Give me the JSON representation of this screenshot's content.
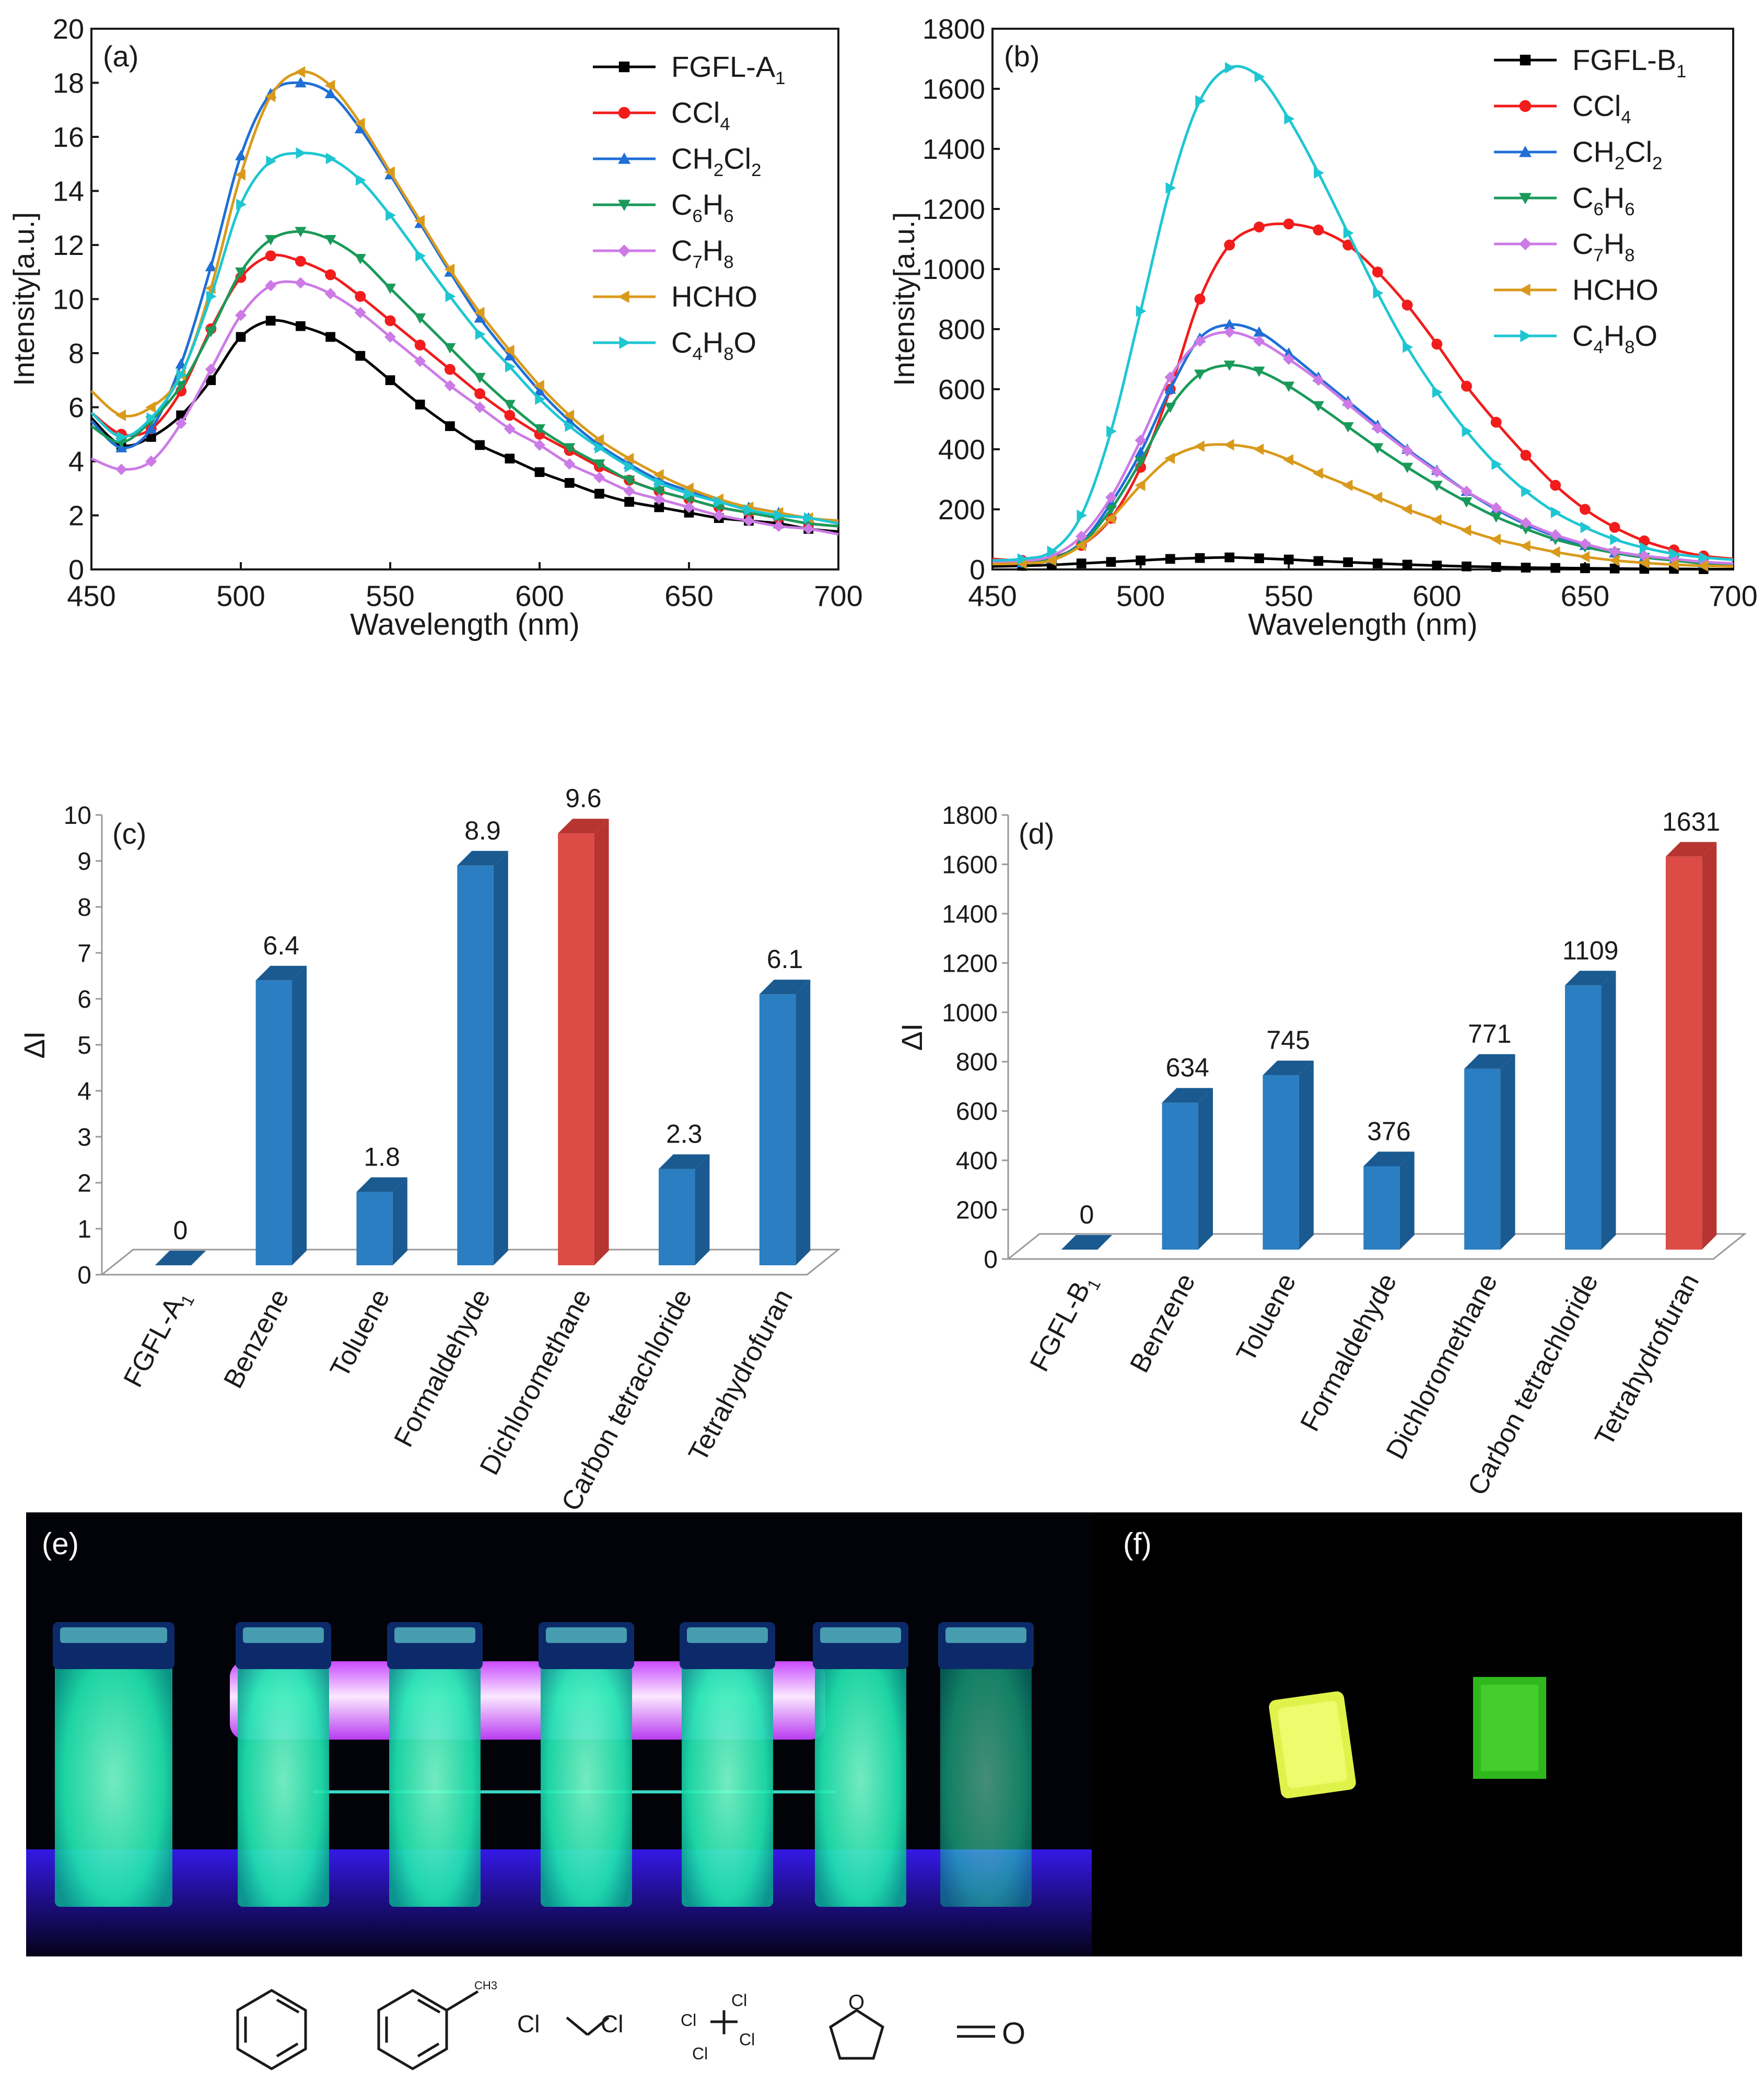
{
  "colors": {
    "FGFL": "#000000",
    "CCl4": "#f21c1c",
    "CH2Cl2": "#1f6fd6",
    "C6H6": "#1a9a5a",
    "C7H8": "#cc7be6",
    "HCHO": "#d99a1c",
    "C4H8O": "#1ec6d2",
    "bar_blue": "#2b7ec1",
    "bar_blue_side": "#1a5a90",
    "bar_red": "#dd4b47",
    "bar_red_side": "#b73531"
  },
  "panels": {
    "a": {
      "label": "(a)",
      "ylabel": "Intensity[a.u.]",
      "xlabel": "Wavelength (nm)",
      "xticks": [
        "450",
        "500",
        "550",
        "600",
        "650",
        "700"
      ],
      "yticks": [
        "0",
        "2",
        "4",
        "6",
        "8",
        "10",
        "12",
        "14",
        "16",
        "18",
        "20"
      ]
    },
    "b": {
      "label": "(b)",
      "ylabel": "Intensity[a.u.]",
      "xlabel": "Wavelength (nm)",
      "xticks": [
        "450",
        "500",
        "550",
        "600",
        "650",
        "700"
      ],
      "yticks": [
        "0",
        "200",
        "400",
        "600",
        "800",
        "1000",
        "1200",
        "1400",
        "1600",
        "1800"
      ]
    },
    "c": {
      "label": "(c)",
      "ylabel": "ΔI",
      "yticks": [
        "0",
        "1",
        "2",
        "3",
        "4",
        "5",
        "6",
        "7",
        "8",
        "9",
        "10"
      ]
    },
    "d": {
      "label": "(d)",
      "ylabel": "ΔI",
      "yticks": [
        "0",
        "200",
        "400",
        "600",
        "800",
        "1000",
        "1200",
        "1400",
        "1600",
        "1800"
      ]
    },
    "e": {
      "label": "(e)"
    },
    "f": {
      "label": "(f)"
    }
  },
  "legend_a": [
    {
      "key": "FGFL",
      "base": "FGFL-A",
      "sub": "1",
      "marker": "square"
    },
    {
      "key": "CCl4",
      "base": "CCl",
      "sub": "4",
      "marker": "circle"
    },
    {
      "key": "CH2Cl2",
      "base": "CH",
      "sub": "2",
      "tail": "Cl",
      "sub2": "2",
      "marker": "triangle-up"
    },
    {
      "key": "C6H6",
      "base": "C",
      "sub": "6",
      "tail": "H",
      "sub2": "6",
      "marker": "triangle-down"
    },
    {
      "key": "C7H8",
      "base": "C",
      "sub": "7",
      "tail": "H",
      "sub2": "8",
      "marker": "diamond"
    },
    {
      "key": "HCHO",
      "base": "HCHO",
      "marker": "triangle-left"
    },
    {
      "key": "C4H8O",
      "base": "C",
      "sub": "4",
      "tail": "H",
      "sub2": "8",
      "tail2": "O",
      "marker": "triangle-right"
    }
  ],
  "legend_b": [
    {
      "key": "FGFL",
      "base": "FGFL-B",
      "sub": "1",
      "marker": "square"
    },
    {
      "key": "CCl4",
      "base": "CCl",
      "sub": "4",
      "marker": "circle"
    },
    {
      "key": "CH2Cl2",
      "base": "CH",
      "sub": "2",
      "tail": "Cl",
      "sub2": "2",
      "marker": "triangle-up"
    },
    {
      "key": "C6H6",
      "base": "C",
      "sub": "6",
      "tail": "H",
      "sub2": "6",
      "marker": "triangle-down"
    },
    {
      "key": "C7H8",
      "base": "C",
      "sub": "7",
      "tail": "H",
      "sub2": "8",
      "marker": "diamond"
    },
    {
      "key": "HCHO",
      "base": "HCHO",
      "marker": "triangle-left"
    },
    {
      "key": "C4H8O",
      "base": "C",
      "sub": "4",
      "tail": "H",
      "sub2": "8",
      "tail2": "O",
      "marker": "triangle-right"
    }
  ],
  "chart_data": [
    {
      "panel": "a",
      "type": "line",
      "title": "(a)",
      "xlabel": "Wavelength (nm)",
      "ylabel": "Intensity[a.u.]",
      "xlim": [
        450,
        700
      ],
      "ylim": [
        0,
        20
      ],
      "x": [
        450,
        460,
        470,
        480,
        490,
        500,
        510,
        520,
        530,
        540,
        550,
        560,
        570,
        580,
        590,
        600,
        610,
        620,
        630,
        640,
        650,
        660,
        670,
        680,
        690,
        700
      ],
      "series": [
        {
          "name": "FGFL-A1",
          "key": "FGFL",
          "values": [
            5.6,
            4.6,
            4.9,
            5.7,
            7.0,
            8.6,
            9.2,
            9.0,
            8.6,
            7.9,
            7.0,
            6.1,
            5.3,
            4.6,
            4.1,
            3.6,
            3.2,
            2.8,
            2.5,
            2.3,
            2.1,
            1.9,
            1.8,
            1.7,
            1.5,
            1.4
          ]
        },
        {
          "name": "CCl4",
          "key": "CCl4",
          "values": [
            5.8,
            5.0,
            5.2,
            6.6,
            8.9,
            10.8,
            11.6,
            11.4,
            10.9,
            10.1,
            9.2,
            8.3,
            7.4,
            6.5,
            5.7,
            5.0,
            4.4,
            3.8,
            3.3,
            2.9,
            2.6,
            2.3,
            2.1,
            1.9,
            1.7,
            1.6
          ]
        },
        {
          "name": "CH2Cl2",
          "key": "CH2Cl2",
          "values": [
            5.5,
            4.5,
            5.2,
            7.6,
            11.2,
            15.3,
            17.6,
            18.0,
            17.6,
            16.3,
            14.6,
            12.8,
            11.0,
            9.3,
            7.9,
            6.6,
            5.5,
            4.6,
            3.9,
            3.3,
            2.9,
            2.5,
            2.3,
            2.1,
            1.9,
            1.8
          ]
        },
        {
          "name": "C6H6",
          "key": "C6H6",
          "values": [
            5.3,
            4.7,
            5.5,
            6.8,
            8.8,
            11.0,
            12.2,
            12.5,
            12.2,
            11.5,
            10.4,
            9.3,
            8.2,
            7.1,
            6.1,
            5.2,
            4.5,
            3.9,
            3.3,
            2.9,
            2.6,
            2.3,
            2.1,
            1.9,
            1.7,
            1.6
          ]
        },
        {
          "name": "C7H8",
          "key": "C7H8",
          "values": [
            4.1,
            3.7,
            4.0,
            5.4,
            7.4,
            9.4,
            10.5,
            10.6,
            10.2,
            9.5,
            8.6,
            7.7,
            6.8,
            6.0,
            5.2,
            4.6,
            3.9,
            3.4,
            2.9,
            2.6,
            2.3,
            2.0,
            1.8,
            1.6,
            1.5,
            1.3
          ]
        },
        {
          "name": "HCHO",
          "key": "HCHO",
          "values": [
            6.6,
            5.7,
            6.0,
            7.2,
            10.4,
            14.6,
            17.5,
            18.4,
            17.9,
            16.5,
            14.7,
            12.9,
            11.1,
            9.5,
            8.1,
            6.8,
            5.7,
            4.8,
            4.1,
            3.5,
            3.0,
            2.6,
            2.3,
            2.1,
            1.9,
            1.8
          ]
        },
        {
          "name": "C4H8O",
          "key": "C4H8O",
          "values": [
            5.8,
            4.9,
            5.6,
            7.2,
            10.1,
            13.5,
            15.1,
            15.4,
            15.2,
            14.4,
            13.1,
            11.6,
            10.1,
            8.7,
            7.5,
            6.3,
            5.3,
            4.5,
            3.8,
            3.2,
            2.8,
            2.5,
            2.2,
            2.0,
            1.9,
            1.7
          ]
        }
      ]
    },
    {
      "panel": "b",
      "type": "line",
      "title": "(b)",
      "xlabel": "Wavelength (nm)",
      "ylabel": "Intensity[a.u.]",
      "xlim": [
        450,
        700
      ],
      "ylim": [
        0,
        1800
      ],
      "x": [
        450,
        460,
        470,
        480,
        490,
        500,
        510,
        520,
        530,
        540,
        550,
        560,
        570,
        580,
        590,
        600,
        610,
        620,
        630,
        640,
        650,
        660,
        670,
        680,
        690,
        700
      ],
      "series": [
        {
          "name": "FGFL-B1",
          "key": "FGFL",
          "values": [
            10,
            12,
            15,
            20,
            25,
            30,
            35,
            38,
            40,
            37,
            33,
            28,
            24,
            20,
            16,
            13,
            10,
            8,
            6,
            5,
            4,
            3,
            2,
            2,
            1,
            1
          ]
        },
        {
          "name": "CCl4",
          "key": "CCl4",
          "values": [
            35,
            30,
            40,
            80,
            170,
            340,
            600,
            900,
            1080,
            1140,
            1150,
            1130,
            1080,
            990,
            880,
            750,
            610,
            490,
            380,
            280,
            200,
            140,
            95,
            65,
            45,
            35
          ]
        },
        {
          "name": "CH2Cl2",
          "key": "CH2Cl2",
          "values": [
            20,
            22,
            35,
            90,
            220,
            390,
            600,
            770,
            815,
            790,
            720,
            640,
            560,
            480,
            400,
            330,
            260,
            200,
            150,
            110,
            80,
            55,
            40,
            30,
            20,
            15
          ]
        },
        {
          "name": "C6H6",
          "key": "C6H6",
          "values": [
            20,
            22,
            35,
            85,
            200,
            360,
            540,
            650,
            680,
            660,
            610,
            545,
            475,
            405,
            340,
            280,
            225,
            175,
            135,
            100,
            75,
            55,
            40,
            30,
            20,
            15
          ]
        },
        {
          "name": "C7H8",
          "key": "C7H8",
          "values": [
            25,
            28,
            45,
            110,
            240,
            430,
            640,
            760,
            790,
            760,
            700,
            630,
            550,
            470,
            395,
            325,
            260,
            205,
            155,
            115,
            85,
            60,
            45,
            35,
            25,
            20
          ]
        },
        {
          "name": "HCHO",
          "key": "HCHO",
          "values": [
            18,
            20,
            30,
            80,
            170,
            280,
            370,
            410,
            415,
            400,
            365,
            320,
            280,
            240,
            200,
            165,
            130,
            100,
            78,
            58,
            42,
            30,
            22,
            16,
            12,
            10
          ]
        },
        {
          "name": "C4H8O",
          "key": "C4H8O",
          "values": [
            30,
            35,
            60,
            180,
            460,
            860,
            1270,
            1560,
            1670,
            1640,
            1500,
            1320,
            1120,
            920,
            740,
            590,
            460,
            350,
            260,
            190,
            140,
            100,
            72,
            52,
            40,
            32
          ]
        }
      ]
    },
    {
      "panel": "c",
      "type": "bar",
      "title": "(c)",
      "ylabel": "ΔI",
      "ylim": [
        0,
        10
      ],
      "categories": [
        "FGFL-A1",
        "Benzene",
        "Toluene",
        "Formaldehyde",
        "Dichloromethane",
        "Carbon tetrachloride",
        "Tetrahydrofuran"
      ],
      "category_labels": [
        {
          "base": "FGFL-A",
          "sub": "1"
        },
        {
          "base": "Benzene"
        },
        {
          "base": "Toluene"
        },
        {
          "base": "Formaldehyde"
        },
        {
          "base": "Dichloromethane"
        },
        {
          "base": "Carbon tetrachloride"
        },
        {
          "base": "Tetrahydrofuran"
        }
      ],
      "values": [
        0,
        6.4,
        1.8,
        8.9,
        9.6,
        2.3,
        6.1
      ],
      "value_labels": [
        "0",
        "6.4",
        "1.8",
        "8.9",
        "9.6",
        "2.3",
        "6.1"
      ],
      "highlight_index": 4
    },
    {
      "panel": "d",
      "type": "bar",
      "title": "(d)",
      "ylabel": "ΔI",
      "ylim": [
        0,
        1800
      ],
      "categories": [
        "FGFL-B1",
        "Benzene",
        "Toluene",
        "Formaldehyde",
        "Dichloromethane",
        "Carbon tetrachloride",
        "Tetrahydrofuran"
      ],
      "category_labels": [
        {
          "base": "FGFL-B",
          "sub": "1"
        },
        {
          "base": "Benzene"
        },
        {
          "base": "Toluene"
        },
        {
          "base": "Formaldehyde"
        },
        {
          "base": "Dichloromethane"
        },
        {
          "base": "Carbon tetrachloride"
        },
        {
          "base": "Tetrahydrofuran"
        }
      ],
      "values": [
        0,
        634,
        745,
        376,
        771,
        1109,
        1631
      ],
      "value_labels": [
        "0",
        "634",
        "745",
        "376",
        "771",
        "1109",
        "1631"
      ],
      "highlight_index": 6
    }
  ],
  "structures": {
    "toluene_methyl": "CH3",
    "dcm_left": "Cl",
    "dcm_right": "Cl",
    "ccl4_labels": [
      "Cl",
      "Cl",
      "Cl",
      "Cl"
    ],
    "formaldehyde_o": "O",
    "thf_o": "O"
  }
}
